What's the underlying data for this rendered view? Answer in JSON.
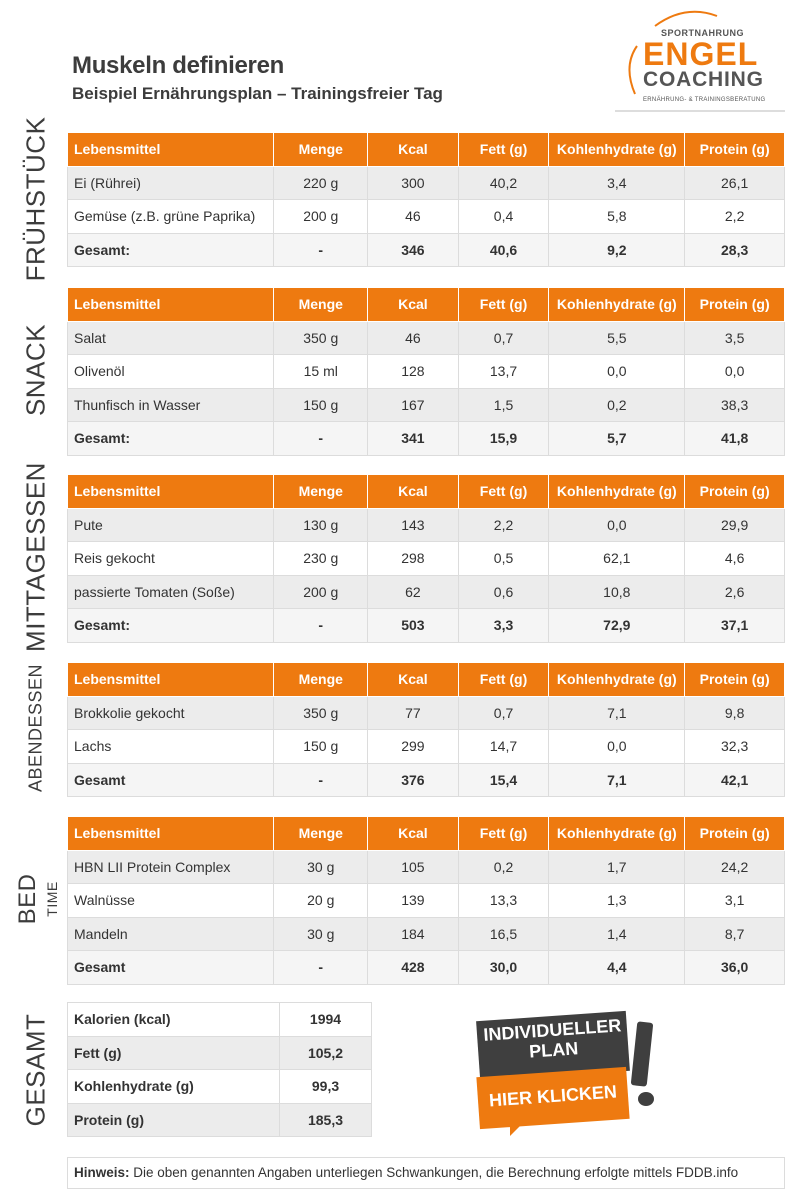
{
  "header": {
    "title": "Muskeln definieren",
    "subtitle": "Beispiel Ernährungsplan – Trainingsfreier Tag"
  },
  "logo": {
    "line1": "SPORTNAHRUNG",
    "line2": "ENGEL",
    "line3": "COACHING",
    "line4": "ERNÄHRUNG- & TRAININGSBERATUNG"
  },
  "colors": {
    "accent": "#ee7a10",
    "dark": "#3f3f3f",
    "row_alt": "#ececec"
  },
  "columns": [
    "Lebensmittel",
    "Menge",
    "Kcal",
    "Fett (g)",
    "Kohlenhydrate (g)",
    "Protein (g)"
  ],
  "meals": [
    {
      "label": "FRÜHSTÜCK",
      "rows": [
        [
          "Ei (Rührei)",
          "220 g",
          "300",
          "40,2",
          "3,4",
          "26,1"
        ],
        [
          "Gemüse (z.B. grüne Paprika)",
          "200 g",
          "46",
          "0,4",
          "5,8",
          "2,2"
        ]
      ],
      "total": [
        "Gesamt:",
        "-",
        "346",
        "40,6",
        "9,2",
        "28,3"
      ]
    },
    {
      "label": "SNACK",
      "rows": [
        [
          "Salat",
          "350 g",
          "46",
          "0,7",
          "5,5",
          "3,5"
        ],
        [
          "Olivenöl",
          "15 ml",
          "128",
          "13,7",
          "0,0",
          "0,0"
        ],
        [
          "Thunfisch in Wasser",
          "150 g",
          "167",
          "1,5",
          "0,2",
          "38,3"
        ]
      ],
      "total": [
        "Gesamt:",
        "-",
        "341",
        "15,9",
        "5,7",
        "41,8"
      ]
    },
    {
      "label": "MITTAGESSEN",
      "rows": [
        [
          "Pute",
          "130  g",
          "143",
          "2,2",
          "0,0",
          "29,9"
        ],
        [
          "Reis  gekocht",
          "230 g",
          "298",
          "0,5",
          "62,1",
          "4,6"
        ],
        [
          "passierte Tomaten (Soße)",
          "200 g",
          "62",
          "0,6",
          "10,8",
          "2,6"
        ]
      ],
      "total": [
        "Gesamt:",
        "-",
        "503",
        "3,3",
        "72,9",
        "37,1"
      ]
    },
    {
      "label": "ABENDESSEN",
      "rows": [
        [
          "Brokkolie gekocht",
          "350 g",
          "77",
          "0,7",
          "7,1",
          "9,8"
        ],
        [
          "Lachs",
          "150 g",
          "299",
          "14,7",
          "0,0",
          "32,3"
        ]
      ],
      "total": [
        "Gesamt",
        "-",
        "376",
        "15,4",
        "7,1",
        "42,1"
      ]
    },
    {
      "label": "BED",
      "sublabel": "TIME",
      "rows": [
        [
          "HBN LII Protein Complex",
          "30 g",
          "105",
          "0,2",
          "1,7",
          "24,2"
        ],
        [
          "Walnüsse",
          "20 g",
          "139",
          "13,3",
          "1,3",
          "3,1"
        ],
        [
          "Mandeln",
          "30 g",
          "184",
          "16,5",
          "1,4",
          "8,7"
        ]
      ],
      "total": [
        "Gesamt",
        "-",
        "428",
        "30,0",
        "4,4",
        "36,0"
      ]
    }
  ],
  "totals": {
    "label": "GESAMT",
    "rows": [
      [
        "Kalorien (kcal)",
        "1994"
      ],
      [
        "Fett (g)",
        "105,2"
      ],
      [
        "Kohlenhydrate (g)",
        "99,3"
      ],
      [
        "Protein (g)",
        "185,3"
      ]
    ]
  },
  "cta": {
    "line1": "INDIVIDUELLER",
    "line2": "PLAN",
    "line3": "HIER KLICKEN",
    "icon": "exclamation-icon"
  },
  "note": {
    "label": "Hinweis:",
    "text": " Die oben genannten Angaben unterliegen Schwankungen, die Berechnung erfolgte mittels FDDB.info"
  }
}
